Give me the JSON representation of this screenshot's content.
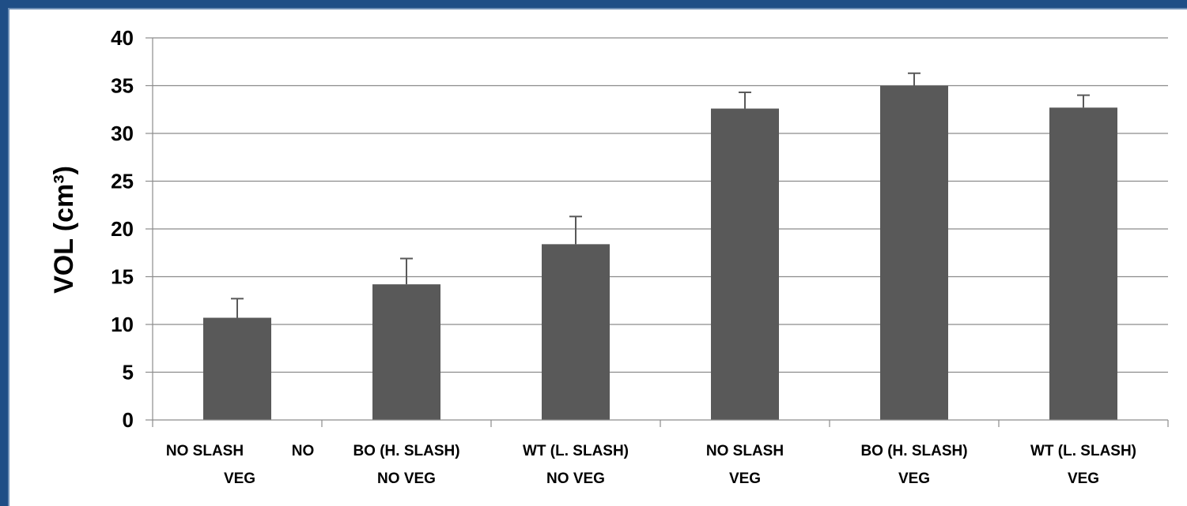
{
  "chart_data": {
    "type": "bar",
    "title": "",
    "xlabel": "",
    "ylabel": "VOL (cm³)",
    "ylim": [
      0,
      40
    ],
    "yticks": [
      "0",
      "5",
      "10",
      "15",
      "20",
      "25",
      "30",
      "35",
      "40"
    ],
    "grid": true,
    "categories": [
      {
        "line1": "NO SLASH",
        "line2": "VEG"
      },
      {
        "line1": "BO (H. SLASH)",
        "line2": "NO VEG"
      },
      {
        "line1": "WT (L. SLASH)",
        "line2": "NO VEG"
      },
      {
        "line1": "NO SLASH",
        "line2": "VEG"
      },
      {
        "line1": "BO (H. SLASH)",
        "line2": "VEG"
      },
      {
        "line1": "WT (L. SLASH)",
        "line2": "VEG"
      }
    ],
    "extra_label": "NO",
    "values": [
      10.7,
      14.2,
      18.4,
      32.6,
      35.0,
      32.7
    ],
    "errors": [
      2.0,
      2.7,
      2.9,
      1.7,
      1.3,
      1.3
    ],
    "colors": {
      "bar": "#595959",
      "grid": "#8c8c8c",
      "axis": "#8c8c8c",
      "error": "#595959"
    }
  }
}
